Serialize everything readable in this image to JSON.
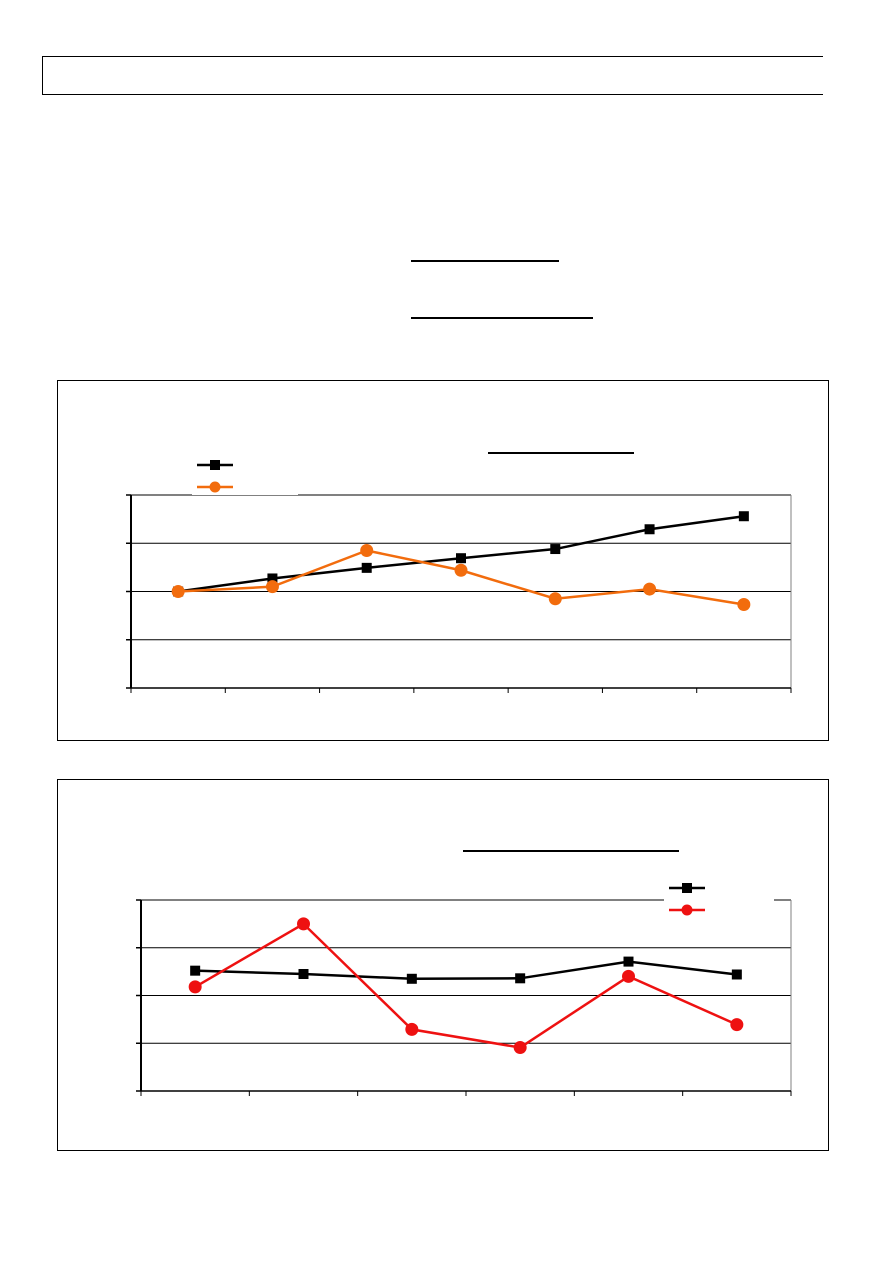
{
  "header": {
    "text": ""
  },
  "charts": [
    {
      "title": "",
      "legend": {
        "placement": "top-left",
        "entries": [
          {
            "label": "",
            "color": "#000000",
            "marker": "square"
          },
          {
            "label": "",
            "color": "#f26c0d",
            "marker": "circle"
          }
        ]
      },
      "colors": {
        "series_a": "#000000",
        "series_b": "#f26c0d"
      }
    },
    {
      "title": "",
      "legend": {
        "placement": "top-right",
        "entries": [
          {
            "label": "",
            "color": "#000000",
            "marker": "square"
          },
          {
            "label": "",
            "color": "#ee1111",
            "marker": "circle"
          }
        ]
      },
      "colors": {
        "series_a": "#000000",
        "series_b": "#ee1111"
      }
    }
  ],
  "chart_data": [
    {
      "type": "line",
      "x": [
        1,
        2,
        3,
        4,
        5,
        6,
        7
      ],
      "ylim": [
        0,
        4
      ],
      "grid": true,
      "legend_placement": "top-left",
      "series": [
        {
          "values": [
            2.0,
            2.27,
            2.49,
            2.69,
            2.88,
            3.29,
            3.56
          ],
          "marker": "square",
          "color": "#000000"
        },
        {
          "values": [
            2.0,
            2.1,
            2.85,
            2.44,
            1.85,
            2.05,
            1.73
          ],
          "marker": "circle",
          "color": "#f26c0d"
        }
      ]
    },
    {
      "type": "line",
      "x": [
        1,
        2,
        3,
        4,
        5,
        6
      ],
      "ylim": [
        0,
        4
      ],
      "grid": true,
      "legend_placement": "top-right",
      "series": [
        {
          "values": [
            2.52,
            2.45,
            2.35,
            2.36,
            2.71,
            2.44
          ],
          "marker": "square",
          "color": "#000000"
        },
        {
          "values": [
            2.18,
            3.5,
            1.29,
            0.91,
            2.4,
            1.39
          ],
          "marker": "circle",
          "color": "#ee1111"
        }
      ]
    }
  ]
}
